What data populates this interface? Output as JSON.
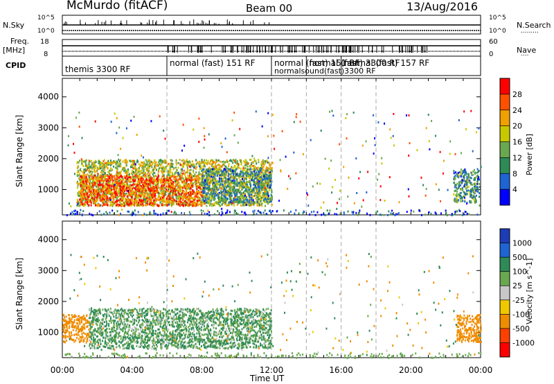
{
  "header": {
    "station": "McMurdo (fitACF)",
    "beam": "Beam 00",
    "date": "13/Aug/2016"
  },
  "status": {
    "nsky_label": "N.Sky",
    "nsky_ticks": [
      "10^5",
      "10^0"
    ],
    "nsearch_label": "N.Search",
    "nsearch_ticks": [
      "10^5",
      "10^0"
    ],
    "freq_label": "Freq.",
    "freq_unit": "[MHz]",
    "freq_ticks": [
      "18",
      "8"
    ],
    "nave_label": "Nave",
    "nave_ticks": [
      "60",
      "0"
    ],
    "cpid_label": "CPID",
    "cpid_segments": [
      {
        "label": "themis 3300 RF",
        "start_hr": 0,
        "end_hr": 6
      },
      {
        "label": "normal (fast) 151 RF",
        "start_hr": 6,
        "end_hr": 12
      },
      {
        "label": "normal (fast) 151 RF",
        "start_hr": 12,
        "end_hr": 14
      },
      {
        "label": "normal (fast) 3300 RF",
        "start_hr": 14,
        "end_hr": 16
      },
      {
        "label": "normal (fast) 157 RF",
        "start_hr": 16,
        "end_hr": 24
      }
    ],
    "cpid_overlap_text": "normalsound(fast)3300 RF"
  },
  "chart_data": [
    {
      "type": "heatmap",
      "name": "power-panel",
      "ylabel": "Slant Range [km]",
      "xlabel": "Time UT",
      "x_ticks": [
        "00:00",
        "04:00",
        "08:00",
        "12:00",
        "16:00",
        "20:00",
        "00:00"
      ],
      "y_ticks": [
        "1000",
        "2000",
        "3000",
        "4000"
      ],
      "xlim_hours": [
        0,
        24
      ],
      "ylim_km": [
        180,
        4600
      ],
      "colorbar": {
        "label": "Power [dB]",
        "ticks": [
          "4",
          "8",
          "12",
          "16",
          "20",
          "24",
          "28"
        ],
        "range": [
          0,
          30
        ],
        "colors": [
          "#0000ff",
          "#1e64d2",
          "#2e8b57",
          "#6aa84f",
          "#c8c800",
          "#f0a000",
          "#ff5000",
          "#ff0000"
        ]
      },
      "scatter_regions": [
        {
          "t0": 0.8,
          "t1": 12.0,
          "r0": 500,
          "r1": 2000,
          "level": 16
        },
        {
          "t0": 1.0,
          "t1": 8.0,
          "r0": 500,
          "r1": 1500,
          "level": 24
        },
        {
          "t0": 8.0,
          "t1": 12.0,
          "r0": 600,
          "r1": 1700,
          "level": 10
        },
        {
          "t0": 22.4,
          "t1": 23.9,
          "r0": 600,
          "r1": 1700,
          "level": 10
        }
      ]
    },
    {
      "type": "heatmap",
      "name": "velocity-panel",
      "ylabel": "Slant Range [km]",
      "xlabel": "Time UT",
      "x_ticks": [
        "00:00",
        "04:00",
        "08:00",
        "12:00",
        "16:00",
        "20:00",
        "00:00"
      ],
      "y_ticks": [
        "1000",
        "2000",
        "3000",
        "4000"
      ],
      "xlim_hours": [
        0,
        24
      ],
      "ylim_km": [
        180,
        4600
      ],
      "colorbar": {
        "label": "Velocity [m s^-1]",
        "ticks": [
          "1000",
          "500",
          "100",
          "25",
          "-25",
          "-100",
          "-500",
          "-1000"
        ],
        "colors": [
          "#1e3cb4",
          "#1e64d2",
          "#2e8b57",
          "#6aa84f",
          "#c8c8c8",
          "#f0c800",
          "#f08c00",
          "#ff4000",
          "#ff0000"
        ]
      },
      "scatter_regions": [
        {
          "t0": 1.5,
          "t1": 12.0,
          "r0": 500,
          "r1": 1800,
          "level": 100
        },
        {
          "t0": 0.0,
          "t1": 1.5,
          "r0": 700,
          "r1": 1600,
          "level": -300
        },
        {
          "t0": 22.6,
          "t1": 24.0,
          "r0": 700,
          "r1": 1600,
          "level": -300
        }
      ]
    }
  ]
}
